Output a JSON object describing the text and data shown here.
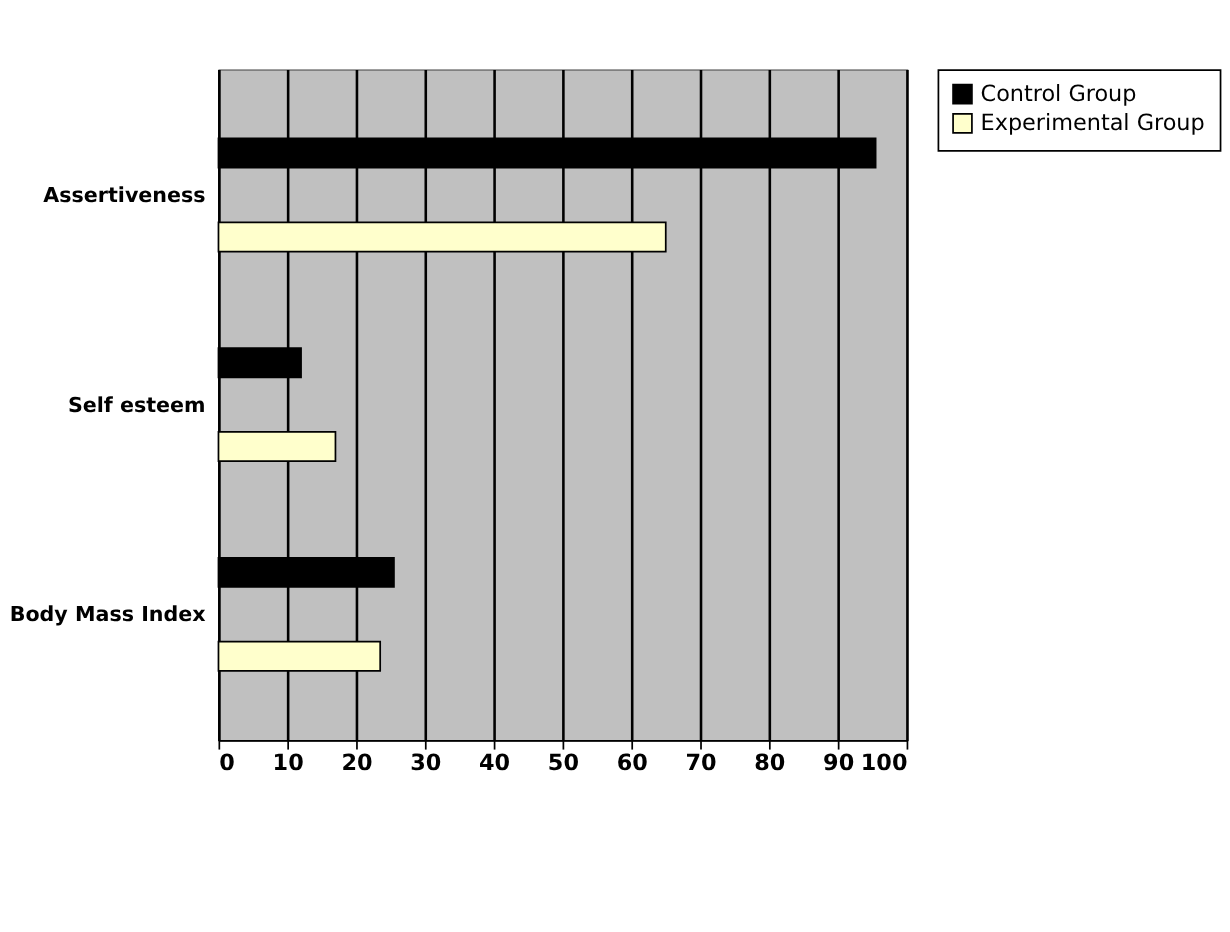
{
  "chart_data": {
    "type": "bar",
    "orientation": "horizontal",
    "categories": [
      "Assertiveness",
      "Self esteem",
      "Body Mass Index"
    ],
    "series": [
      {
        "name": "Control Group",
        "color": "#000000",
        "values": [
          95.5,
          12,
          25.5
        ]
      },
      {
        "name": "Experimental Group",
        "color": "#ffffcc",
        "values": [
          65,
          17,
          23.5
        ]
      }
    ],
    "xlim": [
      0,
      100
    ],
    "xticks": [
      0,
      10,
      20,
      30,
      40,
      50,
      60,
      70,
      80,
      90,
      100
    ],
    "grid": "x",
    "legend": "right"
  }
}
